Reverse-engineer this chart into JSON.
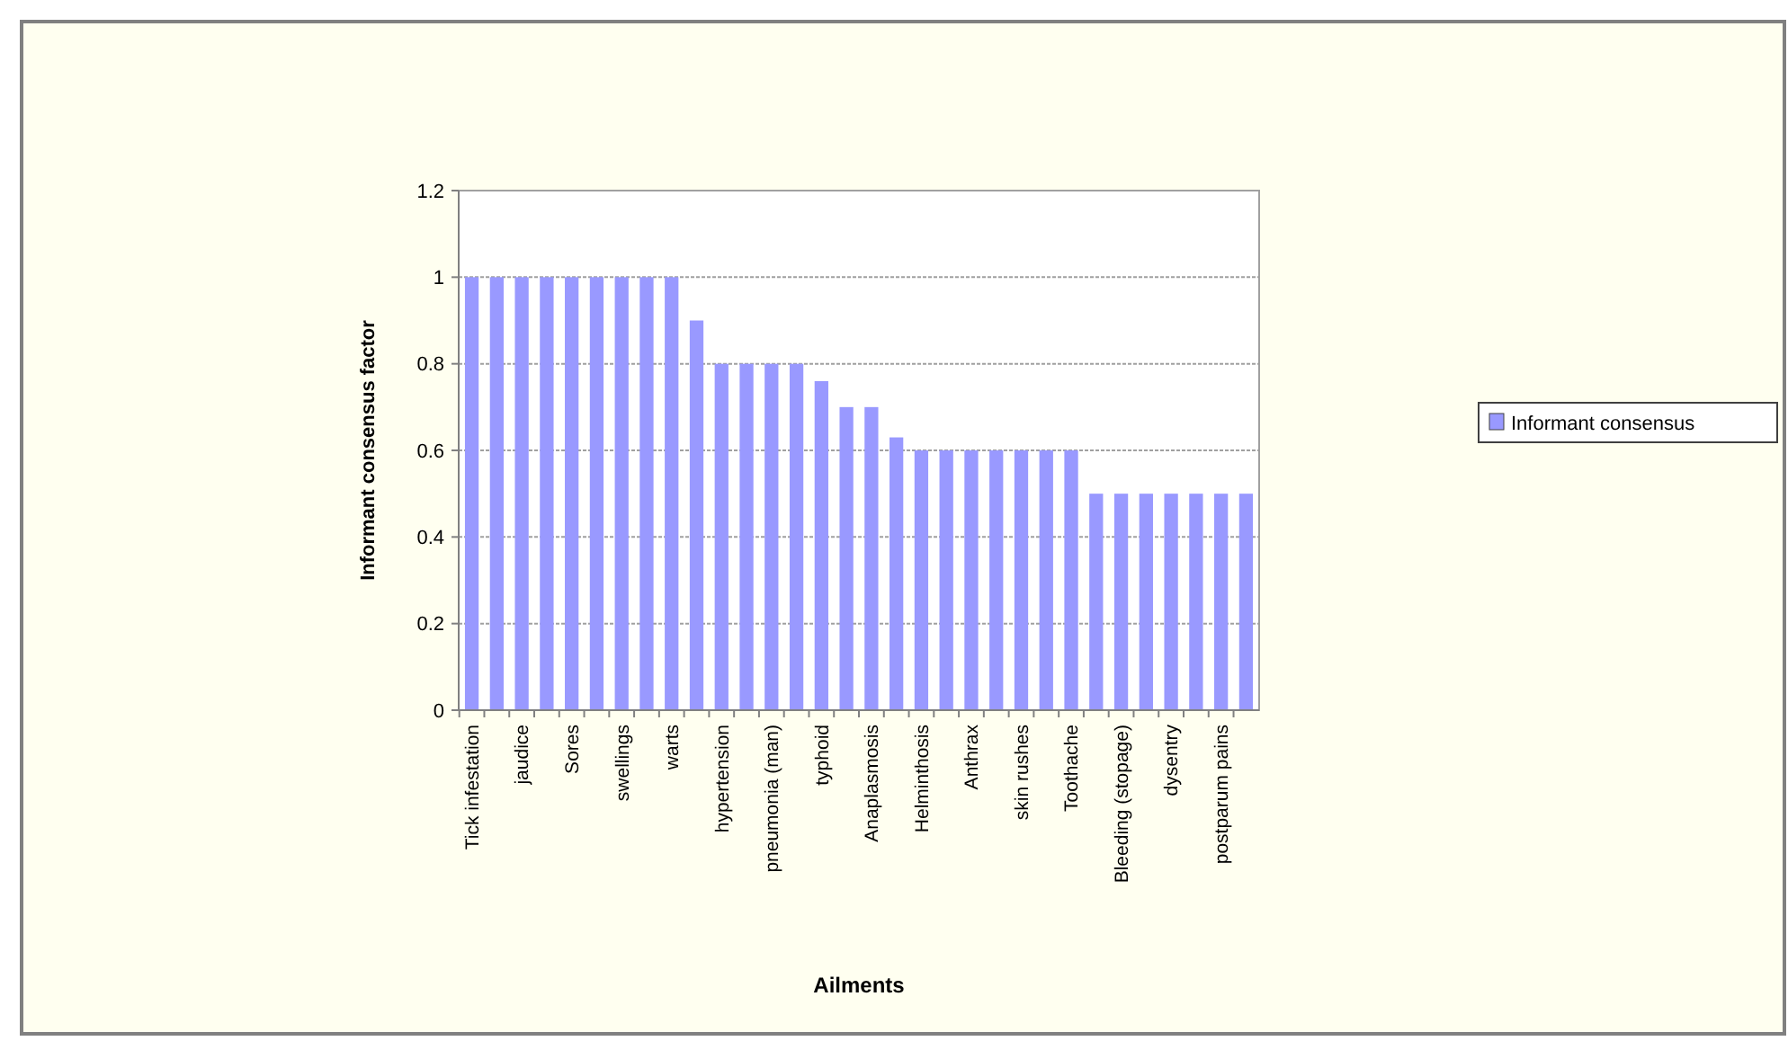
{
  "chart_data": {
    "type": "bar",
    "xlabel": "Ailments",
    "ylabel": "Informant consensus factor",
    "categories": [
      "Tick infestation",
      null,
      "jaudice",
      null,
      "Sores",
      null,
      "swellings",
      null,
      "warts",
      null,
      "hypertension",
      null,
      "pneumonia (man)",
      null,
      "typhoid",
      null,
      "Anaplasmosis",
      null,
      "Helminthosis",
      null,
      "Anthrax",
      null,
      "skin rushes",
      null,
      "Toothache",
      null,
      "Bleeding (stopage)",
      null,
      "dysentry",
      null,
      "postparum pains",
      null
    ],
    "series": [
      {
        "name": "Informant consensus",
        "color": "#9999ff",
        "values": [
          1,
          1,
          1,
          1,
          1,
          1,
          1,
          1,
          1,
          0.9,
          0.8,
          0.8,
          0.8,
          0.8,
          0.76,
          0.7,
          0.7,
          0.63,
          0.6,
          0.6,
          0.6,
          0.6,
          0.6,
          0.6,
          0.6,
          0.5,
          0.5,
          0.5,
          0.5,
          0.5,
          0.5,
          0.5
        ]
      }
    ],
    "ylim": [
      0,
      1.2
    ],
    "yticks": [
      0,
      0.2,
      0.4,
      0.6,
      0.8,
      1,
      1.2
    ],
    "grid": "y",
    "legend": "right"
  }
}
